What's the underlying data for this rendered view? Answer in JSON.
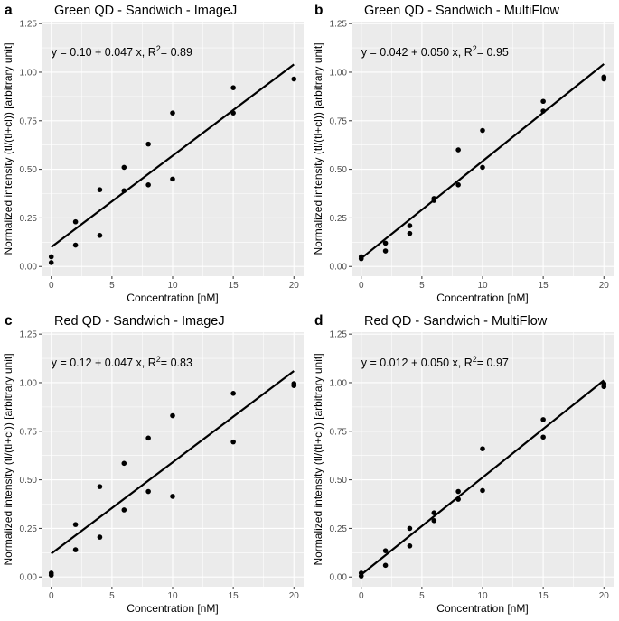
{
  "figure": {
    "xlabel": "Concentration [nM]",
    "ylabel": "Normalized intensity (tl/(tl+cl)) [arbitrary unit]"
  },
  "chart_data": [
    {
      "type": "scatter",
      "tag": "a",
      "title": "Green QD - Sandwich - ImageJ",
      "equation": {
        "prefix": "y = 0.10 + 0.047 x, R",
        "sup": "2",
        "suffix": "= 0.89"
      },
      "fit": {
        "intercept": 0.1,
        "slope": 0.047
      },
      "points": [
        [
          0,
          0.02
        ],
        [
          0,
          0.05
        ],
        [
          2,
          0.11
        ],
        [
          2,
          0.23
        ],
        [
          4,
          0.16
        ],
        [
          4,
          0.395
        ],
        [
          6,
          0.39
        ],
        [
          6,
          0.51
        ],
        [
          8,
          0.42
        ],
        [
          8,
          0.63
        ],
        [
          10,
          0.45
        ],
        [
          10,
          0.79
        ],
        [
          15,
          0.79
        ],
        [
          15,
          0.92
        ],
        [
          20,
          0.965
        ]
      ],
      "xlim": [
        -0.8,
        20.8
      ],
      "ylim": [
        -0.05,
        1.26
      ],
      "xticks": [
        0,
        5,
        10,
        15,
        20
      ],
      "yticks": [
        0,
        0.25,
        0.5,
        0.75,
        1,
        1.25
      ],
      "xtick_labels": [
        "0",
        "5",
        "10",
        "15",
        "20"
      ],
      "ytick_labels": [
        "0.00",
        "0.25",
        "0.50",
        "0.75",
        "1.00",
        "1.25"
      ]
    },
    {
      "type": "scatter",
      "tag": "b",
      "title": "Green QD - Sandwich - MultiFlow",
      "equation": {
        "prefix": "y = 0.042 + 0.050 x, R",
        "sup": "2",
        "suffix": "= 0.95"
      },
      "fit": {
        "intercept": 0.042,
        "slope": 0.05
      },
      "points": [
        [
          0,
          0.04
        ],
        [
          0,
          0.05
        ],
        [
          2,
          0.08
        ],
        [
          2,
          0.12
        ],
        [
          4,
          0.17
        ],
        [
          4,
          0.21
        ],
        [
          6,
          0.34
        ],
        [
          6,
          0.35
        ],
        [
          8,
          0.42
        ],
        [
          8,
          0.6
        ],
        [
          10,
          0.51
        ],
        [
          10,
          0.7
        ],
        [
          15,
          0.8
        ],
        [
          15,
          0.85
        ],
        [
          20,
          0.965
        ],
        [
          20,
          0.975
        ]
      ],
      "xlim": [
        -0.8,
        20.8
      ],
      "ylim": [
        -0.05,
        1.26
      ],
      "xticks": [
        0,
        5,
        10,
        15,
        20
      ],
      "yticks": [
        0,
        0.25,
        0.5,
        0.75,
        1,
        1.25
      ],
      "xtick_labels": [
        "0",
        "5",
        "10",
        "15",
        "20"
      ],
      "ytick_labels": [
        "0.00",
        "0.25",
        "0.50",
        "0.75",
        "1.00",
        "1.25"
      ]
    },
    {
      "type": "scatter",
      "tag": "c",
      "title": "Red QD - Sandwich - ImageJ",
      "equation": {
        "prefix": "y = 0.12 + 0.047 x, R",
        "sup": "2",
        "suffix": "= 0.83"
      },
      "fit": {
        "intercept": 0.12,
        "slope": 0.047
      },
      "points": [
        [
          0,
          0.01
        ],
        [
          0,
          0.02
        ],
        [
          2,
          0.14
        ],
        [
          2,
          0.27
        ],
        [
          4,
          0.205
        ],
        [
          4,
          0.465
        ],
        [
          6,
          0.345
        ],
        [
          6,
          0.585
        ],
        [
          8,
          0.44
        ],
        [
          8,
          0.715
        ],
        [
          10,
          0.415
        ],
        [
          10,
          0.83
        ],
        [
          15,
          0.695
        ],
        [
          15,
          0.945
        ],
        [
          20,
          0.985
        ],
        [
          20,
          0.995
        ]
      ],
      "xlim": [
        -0.8,
        20.8
      ],
      "ylim": [
        -0.05,
        1.26
      ],
      "xticks": [
        0,
        5,
        10,
        15,
        20
      ],
      "yticks": [
        0,
        0.25,
        0.5,
        0.75,
        1,
        1.25
      ],
      "xtick_labels": [
        "0",
        "5",
        "10",
        "15",
        "20"
      ],
      "ytick_labels": [
        "0.00",
        "0.25",
        "0.50",
        "0.75",
        "1.00",
        "1.25"
      ]
    },
    {
      "type": "scatter",
      "tag": "d",
      "title": "Red QD - Sandwich - MultiFlow",
      "equation": {
        "prefix": "y = 0.012 + 0.050 x, R",
        "sup": "2",
        "suffix": "= 0.97"
      },
      "fit": {
        "intercept": 0.012,
        "slope": 0.05
      },
      "points": [
        [
          0,
          0.005
        ],
        [
          0,
          0.02
        ],
        [
          2,
          0.06
        ],
        [
          2,
          0.135
        ],
        [
          4,
          0.16
        ],
        [
          4,
          0.25
        ],
        [
          6,
          0.29
        ],
        [
          6,
          0.33
        ],
        [
          8,
          0.4
        ],
        [
          8,
          0.44
        ],
        [
          10,
          0.445
        ],
        [
          10,
          0.66
        ],
        [
          15,
          0.72
        ],
        [
          15,
          0.81
        ],
        [
          20,
          0.98
        ],
        [
          20,
          0.995
        ]
      ],
      "xlim": [
        -0.8,
        20.8
      ],
      "ylim": [
        -0.05,
        1.26
      ],
      "xticks": [
        0,
        5,
        10,
        15,
        20
      ],
      "yticks": [
        0,
        0.25,
        0.5,
        0.75,
        1,
        1.25
      ],
      "xtick_labels": [
        "0",
        "5",
        "10",
        "15",
        "20"
      ],
      "ytick_labels": [
        "0.00",
        "0.25",
        "0.50",
        "0.75",
        "1.00",
        "1.25"
      ]
    }
  ]
}
